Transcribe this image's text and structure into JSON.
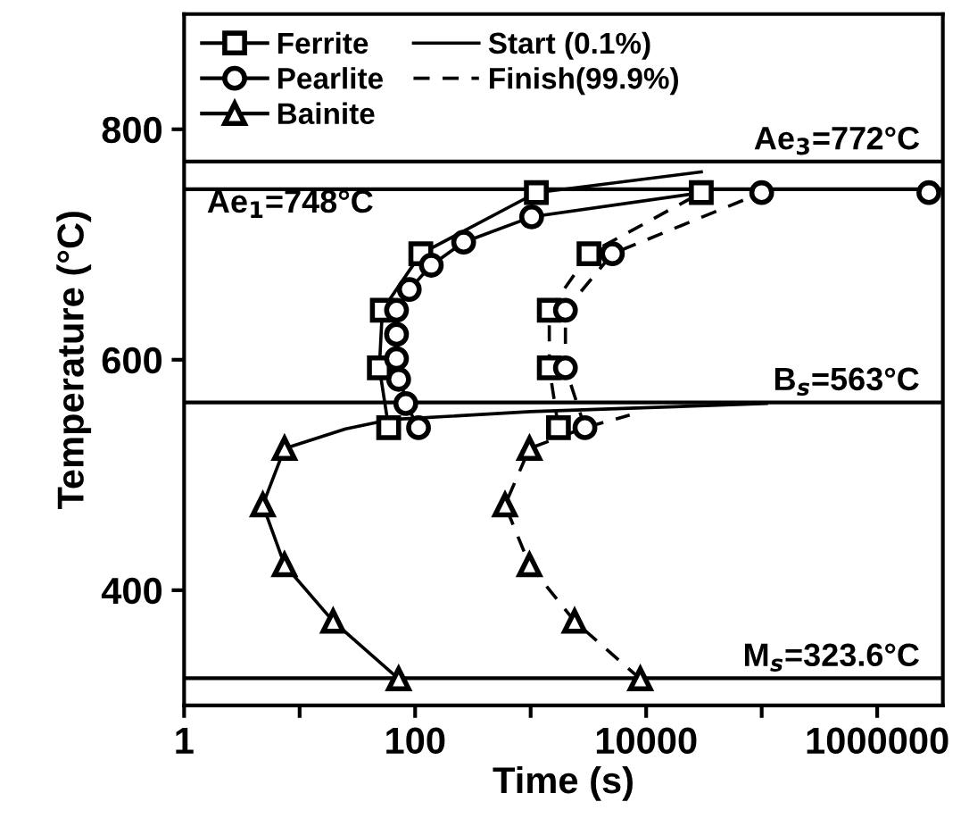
{
  "chart_data": {
    "type": "scatter",
    "xlabel": "Time (s)",
    "ylabel": "Temperature (°C)",
    "log": "x",
    "xlim": [
      1,
      3700000
    ],
    "xticks": [
      1,
      {
        "value": 10,
        "label": null
      },
      100,
      {
        "value": 1000,
        "label": null
      },
      10000,
      {
        "value": 100000,
        "label": null
      },
      1000000
    ],
    "ylim": [
      300,
      900
    ],
    "yticks": [
      400,
      600,
      800
    ],
    "grid": false,
    "legend": "top left",
    "series": [
      {
        "name": "Ferrite",
        "marker": "square",
        "color": "#000000",
        "x": [
          59,
          49,
          52,
          112,
          1120
        ],
        "values": [
          541,
          593,
          643,
          692,
          745
        ]
      },
      {
        "marker": "square",
        "color": "#000000",
        "x": [
          1740,
          1450,
          1450,
          3200,
          30000
        ],
        "values": [
          541,
          593,
          643,
          692,
          745
        ]
      },
      {
        "name": "Pearlite",
        "marker": "circle",
        "color": "#000000",
        "x": [
          107,
          83,
          72,
          69,
          69,
          69,
          89,
          138,
          263,
          1020
        ],
        "values": [
          541,
          562,
          583,
          601,
          622,
          643,
          661,
          682,
          702,
          724
        ]
      },
      {
        "marker": "circle",
        "color": "#000000",
        "x": [
          2950,
          2000,
          2000,
          5100,
          100000,
          2800000
        ],
        "values": [
          541,
          593,
          643,
          692,
          745,
          745
        ]
      },
      {
        "name": "Bainite",
        "marker": "triangle",
        "color": "#000000",
        "x": [
          72,
          19.5,
          7.4,
          4.8,
          7.4
        ],
        "values": [
          323,
          373,
          422,
          474,
          523
        ]
      },
      {
        "marker": "triangle",
        "color": "#000000",
        "x": [
          8900,
          2400,
          977,
          600,
          977
        ],
        "values": [
          323,
          373,
          422,
          474,
          523
        ]
      },
      {
        "name": "Start (0.1%)",
        "type": "line",
        "line_style": "solid",
        "color": "#000000",
        "x": [
          59,
          49,
          52,
          112,
          1120,
          30000
        ],
        "values": [
          541,
          593,
          643,
          692,
          745,
          763
        ]
      },
      {
        "type": "line",
        "line_style": "solid",
        "color": "#000000",
        "x": [
          107,
          83,
          70,
          70,
          89,
          138,
          263,
          1020,
          30000
        ],
        "values": [
          541,
          562,
          600,
          643,
          661,
          682,
          702,
          724,
          745
        ]
      },
      {
        "type": "line",
        "line_style": "solid",
        "color": "#000000",
        "x": [
          72,
          19.5,
          7.4,
          4.8,
          7.4,
          25,
          60,
          1000,
          110000
        ],
        "values": [
          323,
          373,
          422,
          474,
          523,
          540,
          548,
          555,
          562
        ]
      },
      {
        "name": "Finish(99.9%)",
        "type": "line",
        "line_style": "dashed",
        "color": "#000000",
        "x": [
          1740,
          1450,
          1450,
          3200,
          30000
        ],
        "values": [
          541,
          593,
          643,
          692,
          745
        ]
      },
      {
        "type": "line",
        "line_style": "dashed",
        "color": "#000000",
        "x": [
          2950,
          2000,
          2000,
          5100,
          100000
        ],
        "values": [
          541,
          593,
          643,
          692,
          745
        ]
      },
      {
        "type": "line",
        "line_style": "dashed",
        "color": "#000000",
        "x": [
          8900,
          2400,
          977,
          600,
          977,
          2950,
          7200
        ],
        "values": [
          323,
          373,
          422,
          474,
          523,
          541,
          552
        ]
      }
    ],
    "ref_lines": [
      {
        "axis": "y",
        "value": 772,
        "label": "Ae$_{3}$=772°C",
        "color": "#000000"
      },
      {
        "axis": "y",
        "value": 748,
        "label": "Ae$_{1}$=748°C",
        "color": "#000000"
      },
      {
        "axis": "y",
        "value": 563,
        "label": "B$_{s}$=563°C",
        "color": "#000000"
      },
      {
        "axis": "y",
        "value": 323.6,
        "label": "M$_{s}$=323.6°C",
        "color": "#000000"
      }
    ]
  }
}
